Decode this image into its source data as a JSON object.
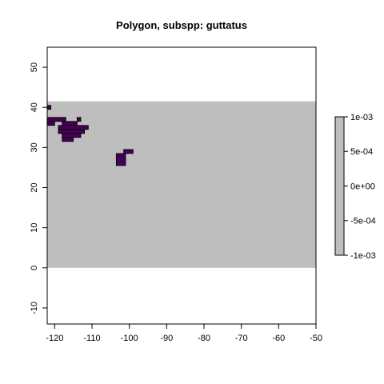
{
  "chart_data": {
    "type": "heatmap",
    "title": "Polygon, subspp: guttatus",
    "xlabel": "",
    "ylabel": "",
    "xlim": [
      -122,
      -50
    ],
    "ylim": [
      -14,
      55
    ],
    "x_ticks": [
      -120,
      -110,
      -100,
      -90,
      -80,
      -70,
      -60,
      -50
    ],
    "y_ticks": [
      -10,
      0,
      10,
      20,
      30,
      40,
      50
    ],
    "grid": false,
    "raster_extent": {
      "xmin": -122,
      "xmax": -50,
      "ymin": 0,
      "ymax": 41.5
    },
    "background_value": 0,
    "background_color": "#bebebe",
    "polygon_color": "#440154",
    "polygon_cells": [
      [
        -122,
        39.5,
        -121,
        40.5
      ],
      [
        -122,
        36.5,
        -117,
        37.5
      ],
      [
        -114,
        36.5,
        -113,
        37.5
      ],
      [
        -123,
        35.5,
        -120,
        36.5
      ],
      [
        -118,
        35.5,
        -114,
        36.5
      ],
      [
        -119,
        34.5,
        -111,
        35.5
      ],
      [
        -119,
        33.5,
        -112,
        34.5
      ],
      [
        -118,
        32.5,
        -113,
        33.5
      ],
      [
        -118,
        31.5,
        -115,
        32.5
      ],
      [
        -101.5,
        28.5,
        -99,
        29.5
      ],
      [
        -103.5,
        25.5,
        -101,
        28.5
      ]
    ],
    "legend": {
      "position": "right",
      "type": "colorbar",
      "labels": [
        "1e-03",
        "5e-04",
        "0e+00",
        "-5e-04",
        "-1e-03"
      ],
      "values": [
        0.001,
        0.0005,
        0,
        -0.0005,
        -0.001
      ],
      "range": [
        -0.001,
        0.001
      ],
      "color": "#bebebe"
    }
  }
}
